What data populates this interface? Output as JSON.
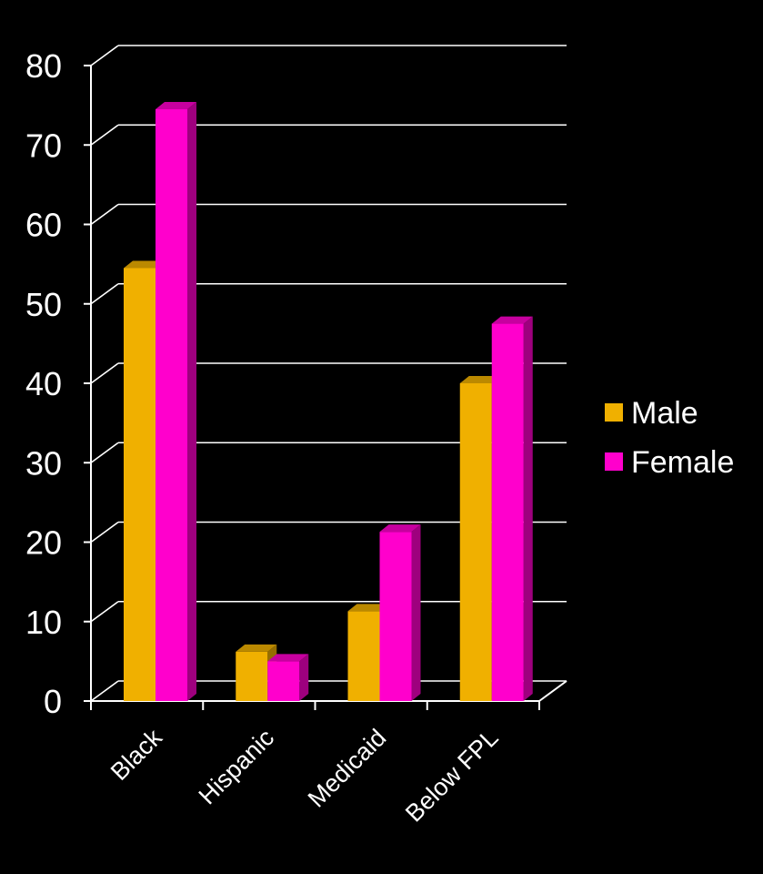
{
  "chart_data": {
    "type": "bar",
    "style": "3d-clustered",
    "categories": [
      "Black",
      "Hispanic",
      "Medicaid",
      "Below FPL"
    ],
    "series": [
      {
        "name": "Male",
        "values": [
          54.5,
          6.2,
          11.3,
          40.0
        ],
        "color": "#F0B000"
      },
      {
        "name": "Female",
        "values": [
          74.5,
          5.0,
          21.3,
          47.5
        ],
        "color": "#FF00CC"
      }
    ],
    "y_ticks": [
      "0",
      "10",
      "20",
      "30",
      "40",
      "50",
      "60",
      "70",
      "80"
    ],
    "ylim": [
      0,
      80
    ],
    "title": "",
    "xlabel": "",
    "ylabel": "",
    "grid": true,
    "legend_position": "right",
    "background": "#000000",
    "foreground": "#FFFFFF"
  }
}
